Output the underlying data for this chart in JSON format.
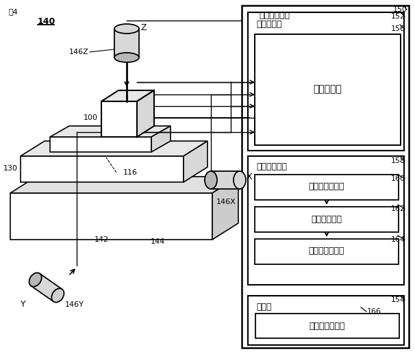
{
  "fig_label": "図4",
  "machine_label": "140",
  "computer_outer_num": "150",
  "computer_text": "コンピュータ",
  "computer_num": "152",
  "processor_text": "プロセッサ",
  "processor_num": "156",
  "measurement_ctrl_text": "測定制御部",
  "data_proc_box_text": "データ処理部",
  "data_proc_box_num": "158",
  "block1_text": "特徴区間抽出部",
  "block1_num": "160",
  "block2_text": "データ補正部",
  "block2_num": "162",
  "block3_text": "フィルタ処理部",
  "block3_num": "164",
  "memory_text": "メモリ",
  "memory_num": "154",
  "memory_data_text": "表面形状データ",
  "memory_data_num": "166",
  "label_100": "100",
  "label_116": "116",
  "label_130": "130",
  "label_142": "142",
  "label_144": "144",
  "label_146X": "146X",
  "label_146Y": "146Y",
  "label_146Z": "146Z",
  "label_X": "X",
  "label_Y": "Y",
  "label_Z": "Z",
  "bg_color": "#ffffff",
  "line_color": "#000000"
}
